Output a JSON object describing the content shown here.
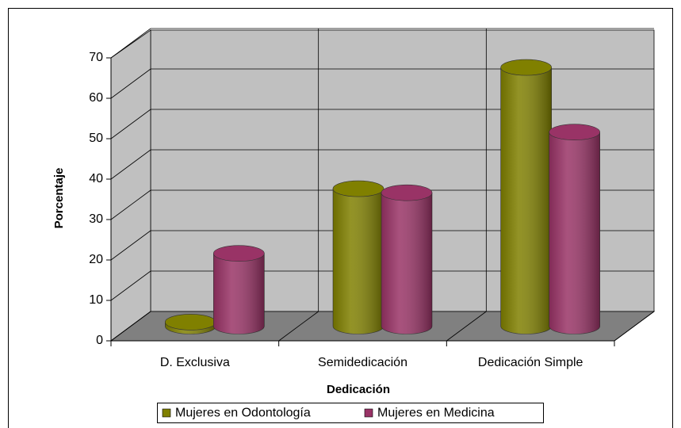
{
  "chart_data": {
    "type": "bar3d",
    "categories": [
      "D. Exclusiva",
      "Semidedicación",
      "Dedicación Simple"
    ],
    "series": [
      {
        "name": "Mujeres en Odontología",
        "color": "#808000",
        "values": [
          1,
          34,
          64
        ]
      },
      {
        "name": "Mujeres en Medicina",
        "color": "#993366",
        "values": [
          18,
          33,
          48
        ]
      }
    ],
    "ylim": [
      0,
      70
    ],
    "yticks": [
      0,
      10,
      20,
      30,
      40,
      50,
      60,
      70
    ],
    "y_label": "Porcentaje",
    "x_label": "Dedicación",
    "grid": true,
    "legend": "bottom"
  }
}
